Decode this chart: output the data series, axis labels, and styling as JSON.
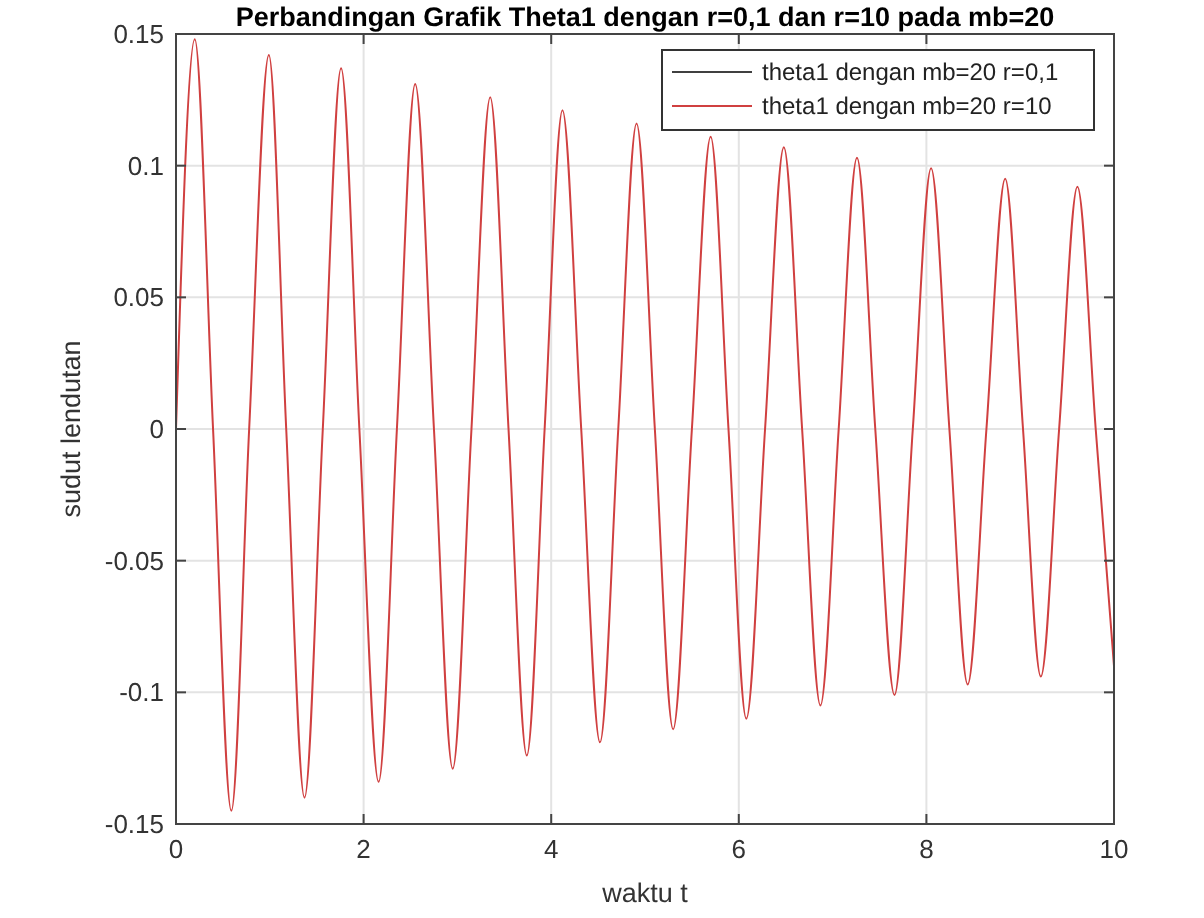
{
  "chart_data": {
    "type": "line",
    "title": "Perbandingan Grafik Theta1 dengan r=0,1 dan r=10 pada mb=20",
    "xlabel": "waktu t",
    "ylabel": "sudut lendutan",
    "x": [
      0,
      0.2,
      0.395,
      0.59,
      0.78,
      0.99,
      1.175,
      1.37,
      1.565,
      1.76,
      1.955,
      2.16,
      2.355,
      2.55,
      2.75,
      2.95,
      3.15,
      3.35,
      3.545,
      3.74,
      3.93,
      4.12,
      4.32,
      4.52,
      4.715,
      4.91,
      5.105,
      5.3,
      5.5,
      5.7,
      5.89,
      6.08,
      6.28,
      6.48,
      6.675,
      6.87,
      7.065,
      7.26,
      7.455,
      7.66,
      7.855,
      8.05,
      8.245,
      8.44,
      8.64,
      8.84,
      9.03,
      9.22,
      9.415,
      9.61,
      9.805,
      10
    ],
    "series": [
      {
        "name": "theta1 dengan mb=20 r=0,1",
        "color": "#404040",
        "values": [
          null,
          null,
          null,
          null,
          null,
          null,
          null,
          null,
          null,
          null,
          null,
          null,
          null,
          null,
          null,
          null,
          null,
          null,
          null,
          null,
          null,
          null,
          null,
          null,
          null,
          null,
          null,
          null,
          null,
          null,
          null,
          null,
          null,
          null,
          null,
          null,
          null,
          null,
          null,
          null,
          null,
          null,
          null,
          null,
          null,
          null,
          null,
          null,
          null,
          null,
          null,
          null
        ]
      },
      {
        "name": "theta1 dengan mb=20 r=10",
        "color": "#d04040",
        "values": [
          0,
          0.148,
          0,
          -0.145,
          0,
          0.142,
          0,
          -0.14,
          0,
          0.137,
          0,
          -0.134,
          0,
          0.131,
          0,
          -0.129,
          0,
          0.126,
          0,
          -0.124,
          0,
          0.121,
          0,
          -0.119,
          0,
          0.116,
          0,
          -0.114,
          0,
          0.111,
          0,
          -0.11,
          0,
          0.107,
          0,
          -0.105,
          0,
          0.103,
          0,
          -0.101,
          0,
          0.099,
          0,
          -0.097,
          0,
          0.095,
          0,
          -0.094,
          0,
          0.092,
          0,
          -0.09
        ]
      }
    ],
    "xlim": [
      0,
      10
    ],
    "xticks": [
      0,
      2,
      4,
      6,
      8,
      10
    ],
    "ylim": [
      -0.15,
      0.15
    ],
    "yticks": [
      -0.15,
      -0.1,
      -0.05,
      0,
      0.05,
      0.1,
      0.15
    ],
    "grid": true,
    "legend": "top right",
    "line_style": "solid",
    "marker": "none"
  }
}
